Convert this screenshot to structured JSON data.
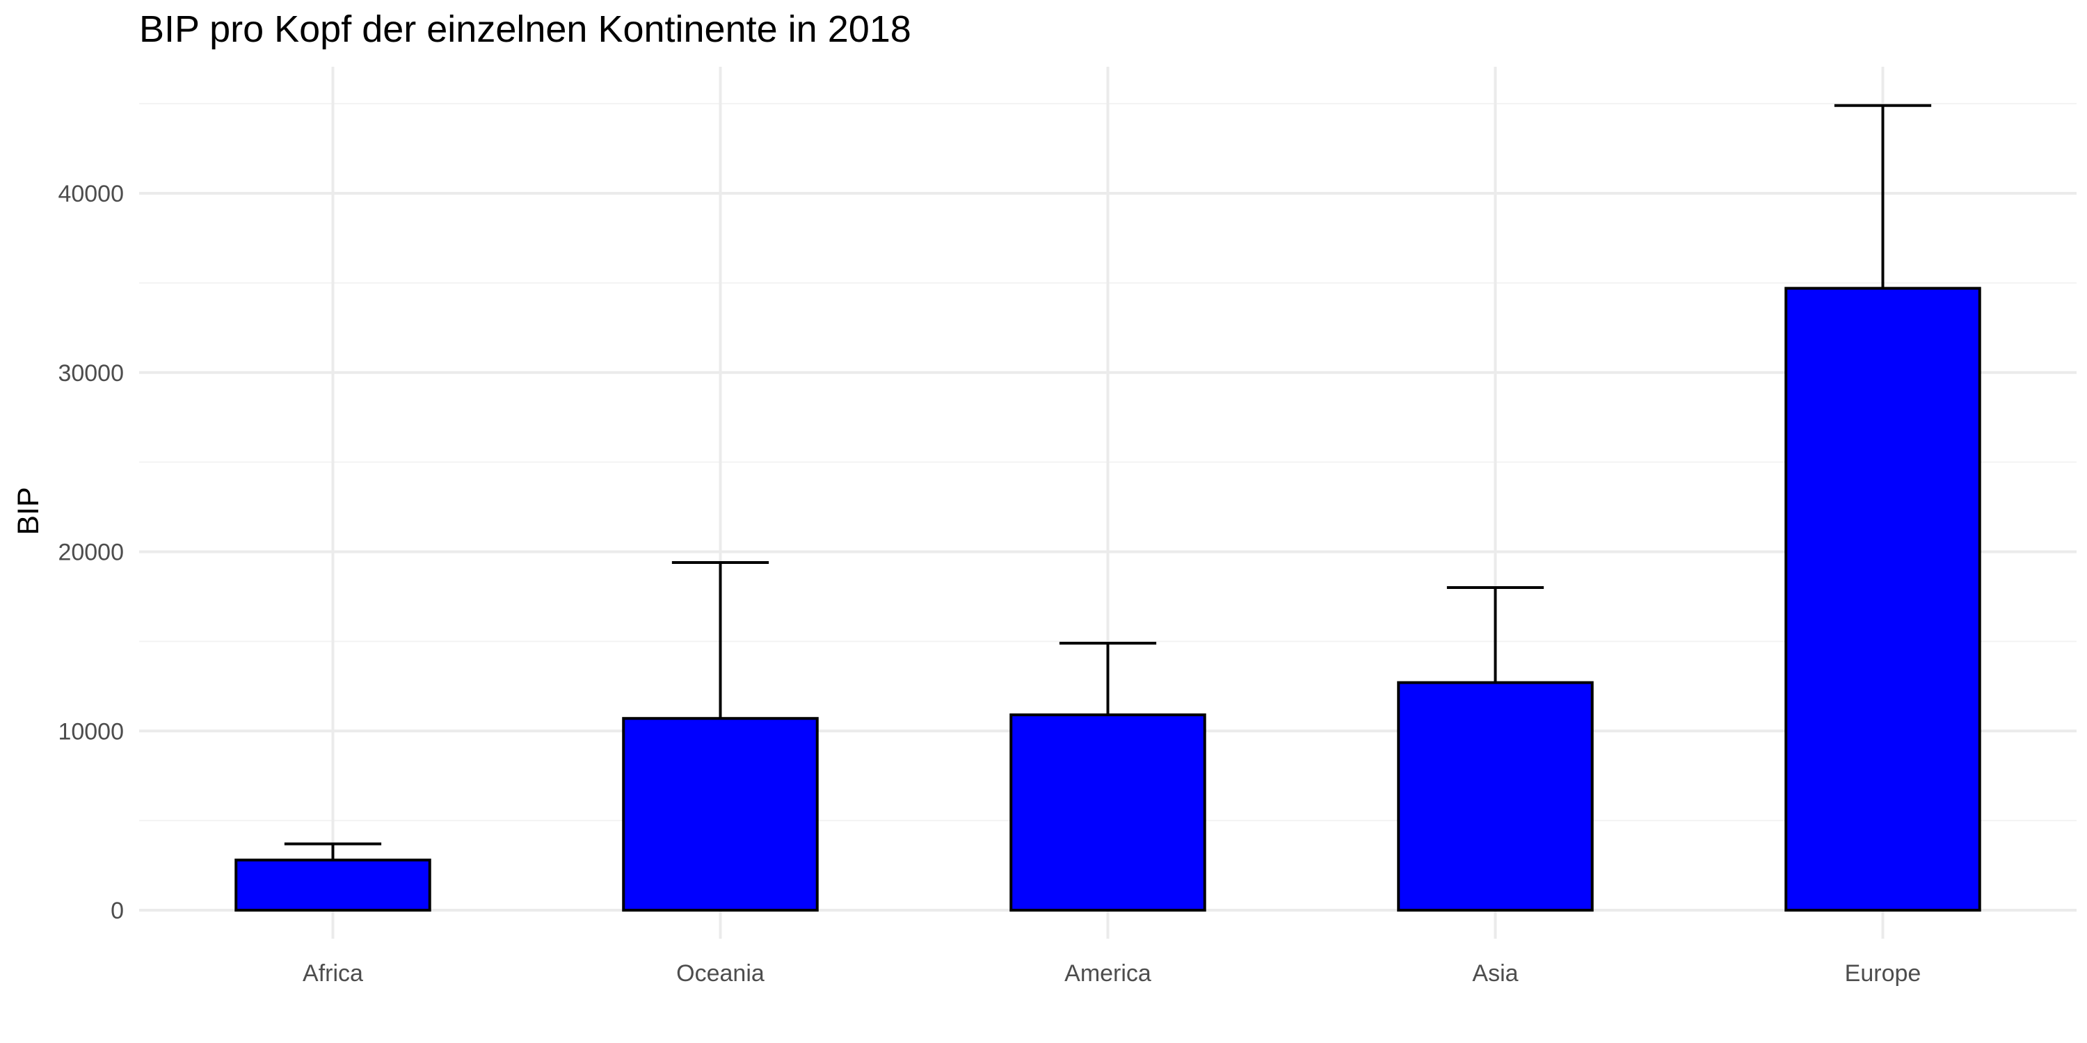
{
  "chart_data": {
    "type": "bar",
    "title": "BIP pro Kopf der einzelnen Kontinente in 2018",
    "xlabel": "",
    "ylabel": "BIP",
    "categories": [
      "Africa",
      "Oceania",
      "America",
      "Asia",
      "Europe"
    ],
    "values": [
      2800,
      10700,
      10900,
      12700,
      34700
    ],
    "error_upper": [
      3700,
      19400,
      14900,
      18000,
      44900
    ],
    "ylim": [
      -2000,
      47000
    ],
    "yticks": [
      0,
      10000,
      20000,
      30000,
      40000
    ],
    "ytick_labels": [
      "0",
      "10000",
      "20000",
      "30000",
      "40000"
    ],
    "grid": true,
    "legend": "none",
    "colors": {
      "bar_fill": "#0000ff",
      "bar_stroke": "#000000",
      "error_bar": "#000000",
      "grid_major": "#ebebeb",
      "grid_minor": "#f3f3f3",
      "tick_text": "#4d4d4d",
      "title_text": "#000000"
    }
  }
}
